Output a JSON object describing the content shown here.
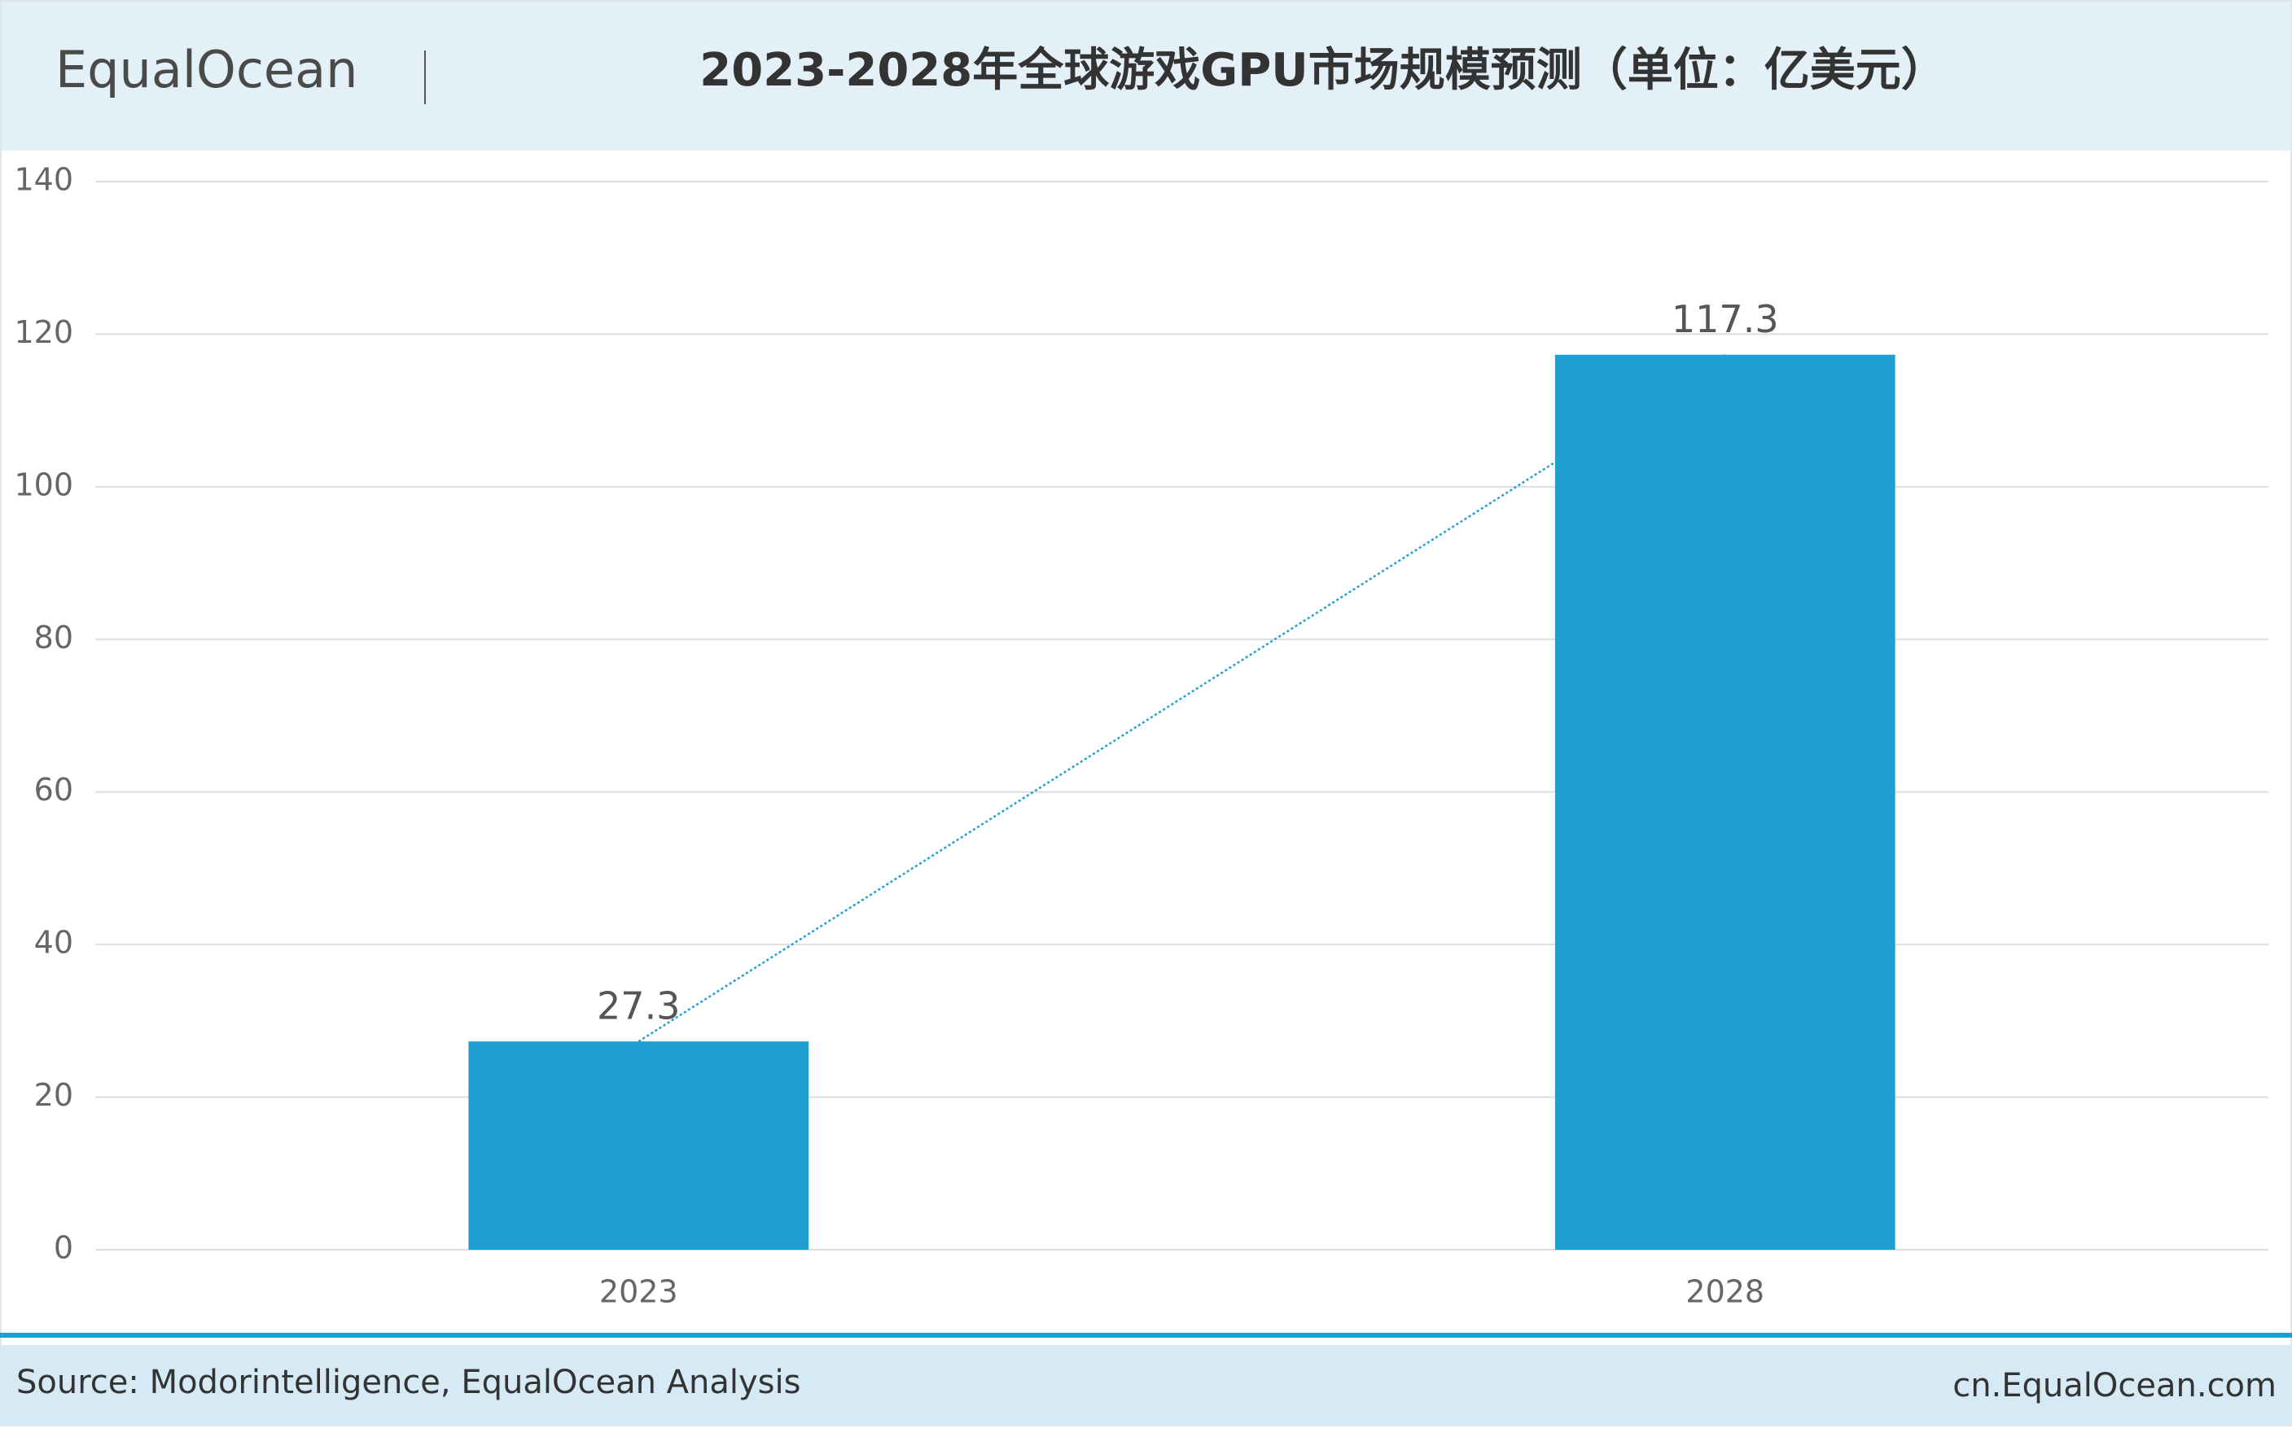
{
  "header": {
    "logo": "EqualOcean"
  },
  "chart_data": {
    "type": "bar",
    "title": "2023-2028年全球游戏GPU市场规模预测（单位：亿美元）",
    "categories": [
      "2023",
      "2028"
    ],
    "values": [
      27.3,
      117.3
    ],
    "color": "#1e9fd3",
    "trendline": true,
    "trendline_color": "#1e9fd3",
    "ylim": [
      0,
      140
    ],
    "yticks": [
      0,
      20,
      40,
      60,
      80,
      100,
      120,
      140
    ],
    "grid": true
  },
  "footer": {
    "source": "Source: Modorintelligence, EqualOcean Analysis",
    "website": "cn.EqualOcean.com"
  }
}
